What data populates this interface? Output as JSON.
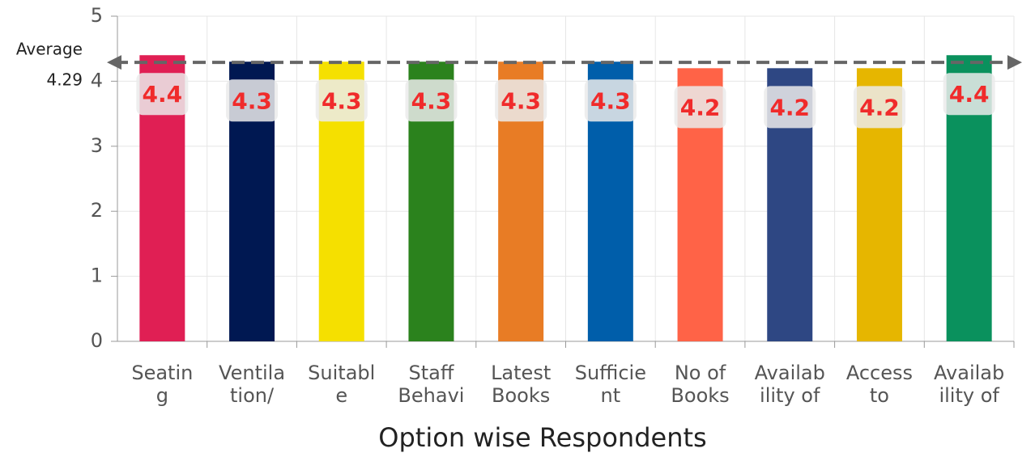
{
  "chart_data": {
    "type": "bar",
    "x_label": "Option wise Respondents",
    "categories": [
      "Seatin\ng",
      "Ventila\ntion/",
      "Suitabl\ne",
      "Staff\nBehavi",
      "Latest\nBooks",
      "Sufficie\nnt",
      "No of\nBooks",
      "Availab\nility of",
      "Access\nto",
      "Availab\nility of"
    ],
    "values": [
      4.4,
      4.3,
      4.3,
      4.3,
      4.3,
      4.3,
      4.2,
      4.2,
      4.2,
      4.4
    ],
    "colors": [
      "#e01f54",
      "#001852",
      "#f5e000",
      "#2b821d",
      "#e87c25",
      "#005eaa",
      "#ff6347",
      "#2e4783",
      "#e6b600",
      "#0a915d"
    ],
    "ylim": [
      0,
      5
    ],
    "yticks": [
      0,
      1,
      2,
      3,
      4,
      5
    ],
    "grid": true,
    "average": {
      "label": "Average",
      "value": 4.29
    }
  }
}
